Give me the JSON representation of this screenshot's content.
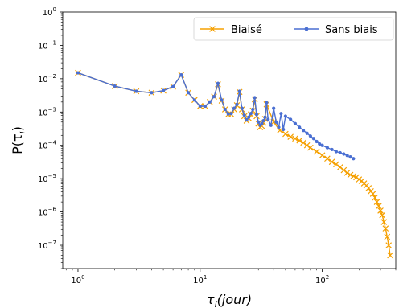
{
  "chart_data": {
    "type": "line",
    "xscale": "log",
    "yscale": "log",
    "xlim": [
      0.75,
      400
    ],
    "ylim": [
      2e-08,
      1
    ],
    "xlabel_main": "τ",
    "xlabel_sub": "i",
    "xlabel_paren": "(jour)",
    "ylabel_main": "P(τ",
    "ylabel_sub": "i",
    "ylabel_close": ")",
    "x_ticks": [
      {
        "value": 1,
        "base": "10",
        "exp": "0"
      },
      {
        "value": 10,
        "base": "10",
        "exp": "1"
      },
      {
        "value": 100,
        "base": "10",
        "exp": "2"
      }
    ],
    "y_ticks": [
      {
        "value": 1,
        "base": "10",
        "exp": "0"
      },
      {
        "value": 0.1,
        "base": "10",
        "exp": "−1"
      },
      {
        "value": 0.01,
        "base": "10",
        "exp": "−2"
      },
      {
        "value": 0.001,
        "base": "10",
        "exp": "−3"
      },
      {
        "value": 0.0001,
        "base": "10",
        "exp": "−4"
      },
      {
        "value": 1e-05,
        "base": "10",
        "exp": "−5"
      },
      {
        "value": 1e-06,
        "base": "10",
        "exp": "−6"
      },
      {
        "value": 1e-07,
        "base": "10",
        "exp": "−7"
      }
    ],
    "legend": {
      "placement": "top-right"
    },
    "series": [
      {
        "name": "Biaisé",
        "color": "#f5a000",
        "marker": "x",
        "x": [
          1,
          2,
          3,
          4,
          5,
          6,
          7,
          8,
          9,
          10,
          11,
          12,
          13,
          14,
          15,
          16,
          17,
          18,
          19,
          20,
          21,
          22,
          23,
          24,
          25,
          26,
          27,
          28,
          29,
          30,
          31,
          32,
          33,
          34,
          35,
          40,
          45,
          50,
          55,
          60,
          65,
          70,
          75,
          80,
          90,
          100,
          110,
          120,
          130,
          140,
          150,
          160,
          170,
          180,
          190,
          200,
          210,
          220,
          230,
          240,
          250,
          260,
          270,
          280,
          290,
          300,
          310,
          320,
          330,
          340,
          350,
          360
        ],
        "y": [
          0.015,
          0.006,
          0.0042,
          0.0038,
          0.0044,
          0.0058,
          0.013,
          0.0038,
          0.0023,
          0.0015,
          0.0015,
          0.002,
          0.0029,
          0.0068,
          0.0022,
          0.0012,
          0.00085,
          0.00085,
          0.0012,
          0.0016,
          0.004,
          0.0012,
          0.00075,
          0.00055,
          0.00065,
          0.00085,
          0.0011,
          0.0024,
          0.00075,
          0.00045,
          0.00035,
          0.00038,
          0.00048,
          0.00062,
          0.0017,
          0.0005,
          0.00028,
          0.00022,
          0.00018,
          0.00016,
          0.00014,
          0.00012,
          0.0001,
          8.5e-05,
          6.5e-05,
          5e-05,
          4e-05,
          3.2e-05,
          2.7e-05,
          2.2e-05,
          1.8e-05,
          1.5e-05,
          1.3e-05,
          1.2e-05,
          1.1e-05,
          9.5e-06,
          8.5e-06,
          7.2e-06,
          6.2e-06,
          5.2e-06,
          4.2e-06,
          3.5e-06,
          2.7e-06,
          2e-06,
          1.5e-06,
          1.1e-06,
          8e-07,
          5e-07,
          3.2e-07,
          1.8e-07,
          1e-07,
          5e-08
        ]
      },
      {
        "name": "Sans biais",
        "color": "#4a6fd2",
        "marker": "o",
        "x": [
          1,
          2,
          3,
          4,
          5,
          6,
          7,
          8,
          9,
          10,
          11,
          12,
          13,
          14,
          15,
          16,
          17,
          18,
          19,
          20,
          21,
          22,
          23,
          24,
          25,
          26,
          27,
          28,
          29,
          30,
          31,
          32,
          33,
          34,
          35,
          36,
          38,
          40,
          42,
          44,
          46,
          48,
          50,
          55,
          60,
          65,
          70,
          75,
          80,
          85,
          90,
          95,
          100,
          110,
          120,
          130,
          140,
          150,
          160,
          170,
          180
        ],
        "y": [
          0.015,
          0.006,
          0.0042,
          0.0038,
          0.0044,
          0.0058,
          0.013,
          0.0038,
          0.0023,
          0.0015,
          0.0015,
          0.002,
          0.0029,
          0.0072,
          0.0023,
          0.0012,
          0.00088,
          0.0009,
          0.0013,
          0.0017,
          0.0042,
          0.0013,
          0.0008,
          0.00058,
          0.0007,
          0.0009,
          0.0012,
          0.0027,
          0.00085,
          0.0005,
          0.0004,
          0.00045,
          0.00055,
          0.0007,
          0.0019,
          0.0006,
          0.0004,
          0.0013,
          0.0005,
          0.00035,
          0.0009,
          0.0003,
          0.00075,
          0.0006,
          0.00045,
          0.00035,
          0.00028,
          0.00023,
          0.00019,
          0.00016,
          0.00013,
          0.00011,
          0.0001,
          8.5e-05,
          7.5e-05,
          6.5e-05,
          6e-05,
          5.5e-05,
          5e-05,
          4.5e-05,
          4e-05
        ]
      }
    ]
  }
}
